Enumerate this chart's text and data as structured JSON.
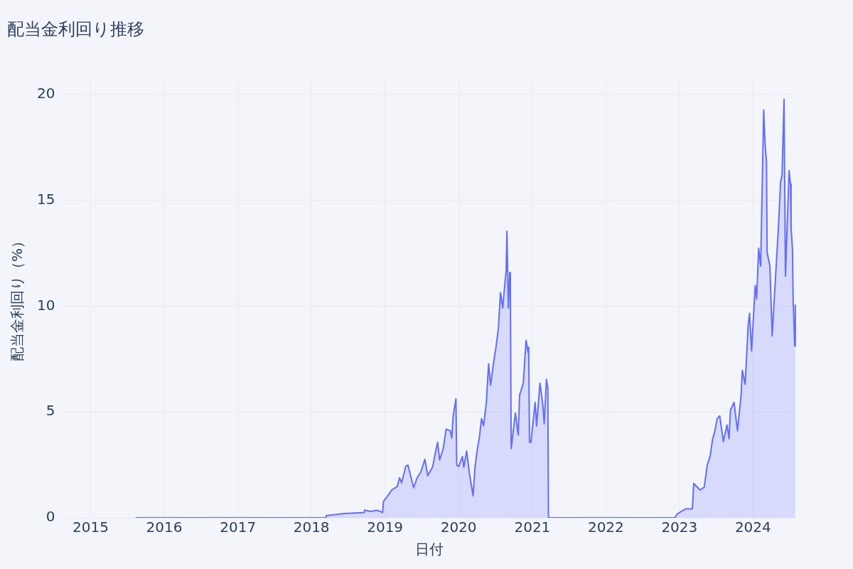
{
  "chart_data": {
    "type": "area",
    "title": "配当金利回り推移",
    "xlabel": "日付",
    "ylabel": "配当金利回り（%）",
    "xlim": [
      "2014-08-13",
      "2024-08-02"
    ],
    "xticks": [
      "2015",
      "2016",
      "2017",
      "2018",
      "2019",
      "2020",
      "2021",
      "2022",
      "2023",
      "2024"
    ],
    "ylim": [
      0,
      20.8
    ],
    "yticks": [
      0,
      5,
      10,
      15,
      20
    ],
    "grid": true,
    "legend": false,
    "series": [
      {
        "color": "#636efa",
        "x": [
          "2015-08-12",
          "2018-03-14",
          "2018-03-15",
          "2018-06-14",
          "2018-09-20",
          "2018-09-21",
          "2018-10-21",
          "2018-11-25",
          "2018-12-20",
          "2018-12-24",
          "2019-01-10",
          "2019-02-03",
          "2019-03-03",
          "2019-03-14",
          "2019-03-24",
          "2019-04-14",
          "2019-04-25",
          "2019-05-23",
          "2019-06-09",
          "2019-06-27",
          "2019-07-18",
          "2019-08-01",
          "2019-08-25",
          "2019-09-05",
          "2019-09-19",
          "2019-09-29",
          "2019-10-17",
          "2019-10-31",
          "2019-11-21",
          "2019-11-28",
          "2019-12-05",
          "2019-12-19",
          "2019-12-23",
          "2020-01-02",
          "2020-01-20",
          "2020-01-27",
          "2020-02-10",
          "2020-02-24",
          "2020-03-13",
          "2020-03-23",
          "2020-04-03",
          "2020-04-13",
          "2020-04-24",
          "2020-05-04",
          "2020-05-18",
          "2020-05-29",
          "2020-06-08",
          "2020-06-22",
          "2020-07-06",
          "2020-07-17",
          "2020-07-27",
          "2020-08-07",
          "2020-08-17",
          "2020-08-24",
          "2020-08-28",
          "2020-09-04",
          "2020-09-11",
          "2020-09-14",
          "2020-09-18",
          "2020-10-09",
          "2020-10-23",
          "2020-10-30",
          "2020-11-17",
          "2020-12-01",
          "2020-12-11",
          "2020-12-14",
          "2020-12-18",
          "2020-12-25",
          "2021-01-15",
          "2021-01-22",
          "2021-02-08",
          "2021-02-22",
          "2021-03-01",
          "2021-03-12",
          "2021-03-19",
          "2021-03-22",
          "2022-12-09",
          "2022-12-20",
          "2023-01-30",
          "2023-03-06",
          "2023-03-13",
          "2023-04-14",
          "2023-05-04",
          "2023-05-19",
          "2023-06-02",
          "2023-06-15",
          "2023-06-26",
          "2023-07-07",
          "2023-07-20",
          "2023-08-07",
          "2023-08-25",
          "2023-09-04",
          "2023-09-11",
          "2023-09-29",
          "2023-10-16",
          "2023-11-03",
          "2023-11-09",
          "2023-11-23",
          "2023-12-08",
          "2023-12-15",
          "2023-12-25",
          "2024-01-12",
          "2024-01-19",
          "2024-01-29",
          "2024-02-08",
          "2024-02-12",
          "2024-02-23",
          "2024-03-01",
          "2024-03-08",
          "2024-03-11",
          "2024-03-25",
          "2024-04-05",
          "2024-04-25",
          "2024-05-06",
          "2024-05-17",
          "2024-05-24",
          "2024-06-03",
          "2024-06-10",
          "2024-06-28",
          "2024-07-05",
          "2024-07-08",
          "2024-07-15",
          "2024-07-18",
          "2024-07-26",
          "2024-07-29"
        ],
        "values": [
          0,
          0,
          0.1,
          0.2,
          0.25,
          0.36,
          0.3,
          0.35,
          0.25,
          0.77,
          0.98,
          1.31,
          1.48,
          1.89,
          1.65,
          2.43,
          2.49,
          1.42,
          1.88,
          2.15,
          2.76,
          1.99,
          2.39,
          2.93,
          3.57,
          2.73,
          3.27,
          4.18,
          4.11,
          3.77,
          4.78,
          5.62,
          2.49,
          2.43,
          2.9,
          2.39,
          3.16,
          2.09,
          1.04,
          2.43,
          3.23,
          3.77,
          4.68,
          4.34,
          5.45,
          7.27,
          6.26,
          7.27,
          8.15,
          8.99,
          10.64,
          9.9,
          10.98,
          11.65,
          13.54,
          9.9,
          11.58,
          11.08,
          3.27,
          4.95,
          3.91,
          5.79,
          6.36,
          8.38,
          7.81,
          8.05,
          3.57,
          3.57,
          5.45,
          4.34,
          6.36,
          5.35,
          4.44,
          6.53,
          6.13,
          0,
          0,
          0.17,
          0.42,
          0.42,
          1.62,
          1.31,
          1.45,
          2.49,
          2.9,
          3.74,
          4.11,
          4.68,
          4.81,
          3.6,
          4.38,
          3.74,
          5.08,
          5.45,
          4.11,
          5.79,
          6.97,
          6.3,
          9.09,
          9.66,
          7.88,
          10.98,
          10.34,
          12.73,
          11.89,
          13.84,
          19.26,
          17.64,
          16.8,
          12.53,
          11.89,
          8.59,
          11.89,
          13.7,
          15.89,
          16.16,
          19.76,
          11.41,
          16.4,
          15.76,
          13.7,
          12.66,
          10.34,
          8.11,
          10.07
        ]
      }
    ]
  }
}
